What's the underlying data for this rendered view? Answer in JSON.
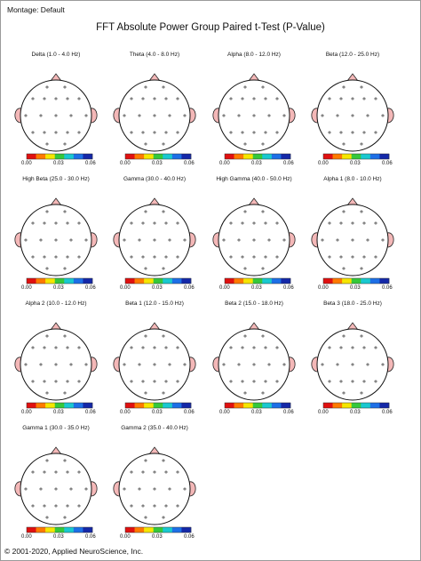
{
  "header": {
    "montage_label": "Montage:  Default",
    "title": "FFT Absolute Power Group Paired t-Test  (P-Value)"
  },
  "footer": {
    "copyright": "© 2001-2020, Applied NeuroScience, Inc."
  },
  "colorbar": {
    "ticks": [
      "0.00",
      "0.03",
      "0.06"
    ],
    "colors": [
      "#e01010",
      "#ff7a00",
      "#f5e600",
      "#35c83a",
      "#19c8d0",
      "#1d6fe6",
      "#1428a8"
    ]
  },
  "panels": [
    {
      "label": "Delta (1.0 - 4.0 Hz)",
      "region": "none"
    },
    {
      "label": "Theta (4.0 - 8.0 Hz)",
      "region": "theta"
    },
    {
      "label": "Alpha (8.0 - 12.0 Hz)",
      "region": "alpha"
    },
    {
      "label": "Beta (12.0 - 25.0 Hz)",
      "region": "beta"
    },
    {
      "label": "High Beta (25.0 - 30.0 Hz)",
      "region": "highbeta"
    },
    {
      "label": "Gamma (30.0 - 40.0 Hz)",
      "region": "gamma"
    },
    {
      "label": "High Gamma (40.0 - 50.0 Hz)",
      "region": "highgamma"
    },
    {
      "label": "Alpha 1 (8.0 - 10.0 Hz)",
      "region": "alpha1"
    },
    {
      "label": "Alpha 2 (10.0 - 12.0 Hz)",
      "region": "alpha2"
    },
    {
      "label": "Beta 1 (12.0 - 15.0 Hz)",
      "region": "none"
    },
    {
      "label": "Beta 2 (15.0 - 18.0 Hz)",
      "region": "beta2"
    },
    {
      "label": "Beta 3 (18.0 - 25.0 Hz)",
      "region": "beta3"
    },
    {
      "label": "Gamma 1 (30.0 - 35.0 Hz)",
      "region": "gamma1"
    },
    {
      "label": "Gamma 2 (35.0 - 40.0 Hz)",
      "region": "gamma2"
    }
  ]
}
